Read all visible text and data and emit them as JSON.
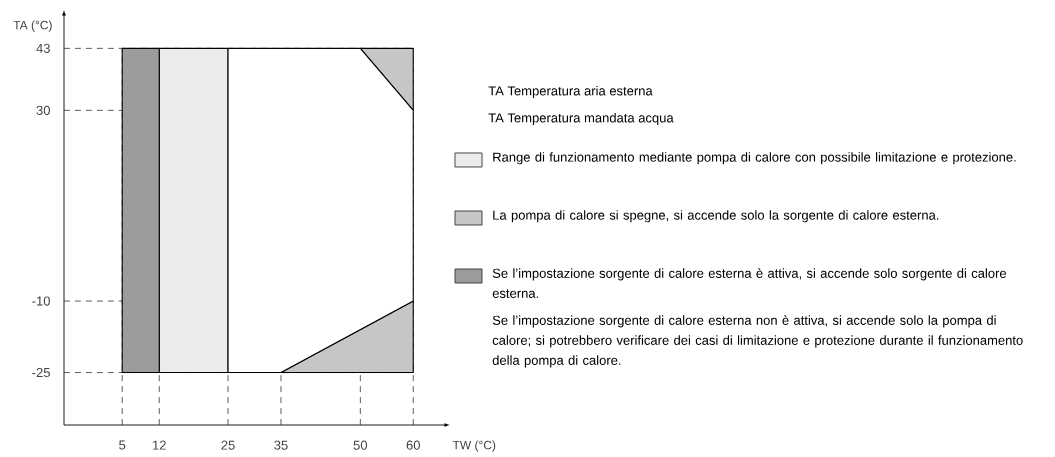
{
  "chart_data": {
    "type": "area",
    "xlabel": "TW (°C)",
    "ylabel": "TA (°C)",
    "xlim": [
      -6,
      66
    ],
    "ylim": [
      -36,
      50
    ],
    "xticks": [
      5,
      12,
      25,
      35,
      50,
      60
    ],
    "yticks": [
      -25,
      -10,
      30,
      43
    ],
    "grid": false,
    "legend": "right",
    "line_style": "solid",
    "marker": "none",
    "series": [
      {
        "name": "Range di funzionamento mediante pompa di calore con possibile limitazione e protezione.",
        "color": "#ececec",
        "x": [
          12,
          25,
          25,
          12
        ],
        "values": [
          43,
          43,
          -25,
          -25
        ]
      },
      {
        "name": "La pompa di calore si spegne, si accende solo la sorgente di calore esterna.",
        "color": "#c6c6c6",
        "x": [
          50,
          60,
          60
        ],
        "values": [
          43,
          43,
          30
        ]
      },
      {
        "name": "Se l’impostazione sorgente di calore esterna è attiva, si accende solo sorgente di calore esterna.",
        "color": "#9c9c9c",
        "x": [
          5,
          12,
          12,
          5
        ],
        "values": [
          43,
          43,
          -25,
          -25
        ]
      },
      {
        "color": "#c6c6c6",
        "x": [
          35,
          60,
          60
        ],
        "values": [
          -25,
          -25,
          -10
        ]
      },
      {
        "color": "#ffffff",
        "x": [
          25,
          50,
          60,
          60,
          35,
          25
        ],
        "values": [
          43,
          43,
          30,
          -10,
          -25,
          -25
        ]
      }
    ],
    "ref_lines": [
      {
        "axis": "x",
        "value": 5,
        "line_style": "dashed"
      },
      {
        "axis": "x",
        "value": 12,
        "line_style": "dashed"
      },
      {
        "axis": "x",
        "value": 25,
        "line_style": "dashed"
      },
      {
        "axis": "x",
        "value": 35,
        "line_style": "dashed"
      },
      {
        "axis": "x",
        "value": 50,
        "line_style": "dashed"
      },
      {
        "axis": "x",
        "value": 60,
        "line_style": "dashed"
      },
      {
        "axis": "y",
        "value": -25,
        "line_style": "dashed"
      },
      {
        "axis": "y",
        "value": -10,
        "line_style": "dashed"
      },
      {
        "axis": "y",
        "value": 30,
        "line_style": "dashed"
      },
      {
        "axis": "y",
        "value": 43,
        "line_style": "dashed"
      }
    ],
    "annotations": [
      "TA   Temperatura aria esterna",
      "TA   Temperatura mandata acqua",
      "Se l’impostazione sorgente di calore esterna non è attiva, si accende solo la pompa di calore; si potrebbero verificare dei casi di limitazione e protezione durante il funzionamento della pompa di calore."
    ]
  }
}
